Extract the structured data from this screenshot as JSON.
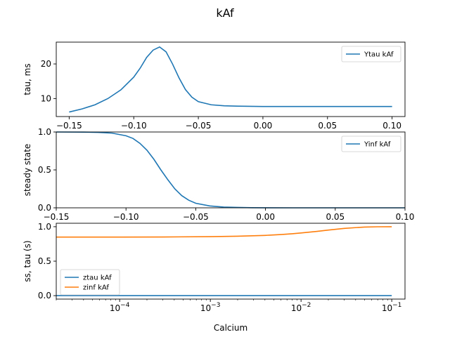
{
  "figure": {
    "title": "kAf"
  },
  "chart_data": [
    {
      "type": "line",
      "ylabel": "tau, ms",
      "xlabel": "",
      "xlim": [
        -0.16,
        0.11
      ],
      "ylim": [
        4.8,
        26.3
      ],
      "xticks": [
        -0.15,
        -0.1,
        -0.05,
        0.0,
        0.05,
        0.1
      ],
      "xtick_labels": [
        "−0.15",
        "−0.10",
        "−0.05",
        "0.00",
        "0.05",
        "0.10"
      ],
      "yticks": [
        10,
        20
      ],
      "ytick_labels": [
        "10",
        "20"
      ],
      "legend": "upper right",
      "series": [
        {
          "name": "Ytau kAf",
          "color": "#1f77b4",
          "x": [
            -0.15,
            -0.14,
            -0.13,
            -0.12,
            -0.11,
            -0.1,
            -0.095,
            -0.09,
            -0.085,
            -0.08,
            -0.075,
            -0.07,
            -0.065,
            -0.06,
            -0.055,
            -0.05,
            -0.04,
            -0.03,
            -0.02,
            -0.01,
            0.0,
            0.02,
            0.04,
            0.06,
            0.08,
            0.1
          ],
          "y": [
            6.1,
            7.0,
            8.2,
            10.0,
            12.5,
            16.2,
            18.8,
            21.9,
            24.0,
            24.9,
            23.5,
            20.0,
            16.0,
            12.6,
            10.4,
            9.1,
            8.2,
            7.9,
            7.8,
            7.75,
            7.7,
            7.7,
            7.7,
            7.7,
            7.7,
            7.7
          ]
        }
      ]
    },
    {
      "type": "line",
      "ylabel": "steady state",
      "xlabel": "",
      "xlim": [
        -0.15,
        0.1
      ],
      "ylim": [
        0.0,
        1.0
      ],
      "xticks": [
        -0.15,
        -0.1,
        -0.05,
        0.0,
        0.05,
        0.1
      ],
      "xtick_labels": [
        "−0.15",
        "−0.10",
        "−0.05",
        "0.00",
        "0.05",
        "0.10"
      ],
      "yticks": [
        0.0,
        0.5,
        1.0
      ],
      "ytick_labels": [
        "0.0",
        "0.5",
        "1.0"
      ],
      "legend": "upper right",
      "series": [
        {
          "name": "Yinf kAf",
          "color": "#1f77b4",
          "x": [
            -0.15,
            -0.13,
            -0.12,
            -0.11,
            -0.1,
            -0.095,
            -0.09,
            -0.085,
            -0.08,
            -0.075,
            -0.07,
            -0.065,
            -0.06,
            -0.055,
            -0.05,
            -0.04,
            -0.03,
            -0.02,
            -0.01,
            0.0,
            0.02,
            0.05,
            0.1
          ],
          "y": [
            1.0,
            0.998,
            0.995,
            0.985,
            0.95,
            0.915,
            0.85,
            0.76,
            0.64,
            0.5,
            0.37,
            0.25,
            0.16,
            0.1,
            0.06,
            0.025,
            0.01,
            0.005,
            0.002,
            0.001,
            0.0,
            0.0,
            0.0
          ]
        }
      ]
    },
    {
      "type": "line",
      "ylabel": "ss, tau (s)",
      "xlabel": "Calcium",
      "xscale": "log",
      "xlim": [
        2e-05,
        0.14
      ],
      "ylim": [
        -0.05,
        1.05
      ],
      "xticks": [
        0.0001,
        0.001,
        0.01,
        0.1
      ],
      "xtick_labels": [
        "10−4",
        "10−3",
        "10−2",
        "10−1"
      ],
      "yticks": [
        0.0,
        0.5,
        1.0
      ],
      "ytick_labels": [
        "0.0",
        "0.5",
        "1.0"
      ],
      "legend": "lower left",
      "series": [
        {
          "name": "ztau kAf",
          "color": "#1f77b4",
          "x": [
            2e-05,
            0.0001,
            0.001,
            0.01,
            0.1
          ],
          "y": [
            0.0,
            0.0,
            0.0,
            0.0,
            0.0
          ]
        },
        {
          "name": "zinf kAf",
          "color": "#ff7f0e",
          "x": [
            2e-05,
            0.0001,
            0.0003,
            0.001,
            0.002,
            0.004,
            0.006,
            0.008,
            0.01,
            0.015,
            0.02,
            0.03,
            0.05,
            0.07,
            0.1
          ],
          "y": [
            0.85,
            0.85,
            0.851,
            0.856,
            0.862,
            0.874,
            0.886,
            0.898,
            0.909,
            0.932,
            0.951,
            0.976,
            0.995,
            0.999,
            1.0
          ]
        }
      ]
    }
  ]
}
